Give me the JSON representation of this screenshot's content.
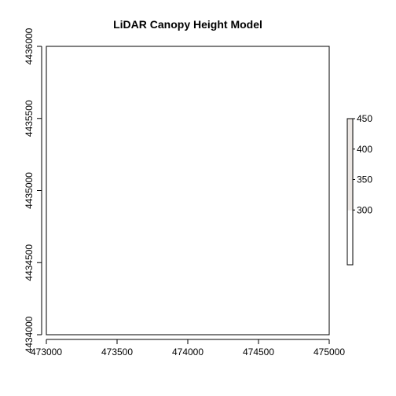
{
  "chart_data": {
    "type": "heatmap",
    "title": "LiDAR Canopy Height Model",
    "xlabel": "",
    "ylabel": "",
    "xlim": [
      473000,
      475000
    ],
    "ylim": [
      4434000,
      4436000
    ],
    "x_ticks": [
      "473000",
      "473500",
      "474000",
      "474500",
      "475000"
    ],
    "y_ticks": [
      "4434000",
      "4434500",
      "4435000",
      "4435500",
      "4436000"
    ],
    "x_tick_values": [
      473000,
      473500,
      474000,
      474500,
      475000
    ],
    "y_tick_values": [
      4434000,
      4434500,
      4435000,
      4435500,
      4436000
    ],
    "legend": {
      "placement": "right",
      "range": [
        210,
        450
      ],
      "ticks": [
        "300",
        "350",
        "400",
        "450"
      ],
      "tick_values": [
        300,
        350,
        400,
        450
      ],
      "colors": [
        "#ffffff",
        "#ece7e4"
      ]
    },
    "grid": false
  }
}
